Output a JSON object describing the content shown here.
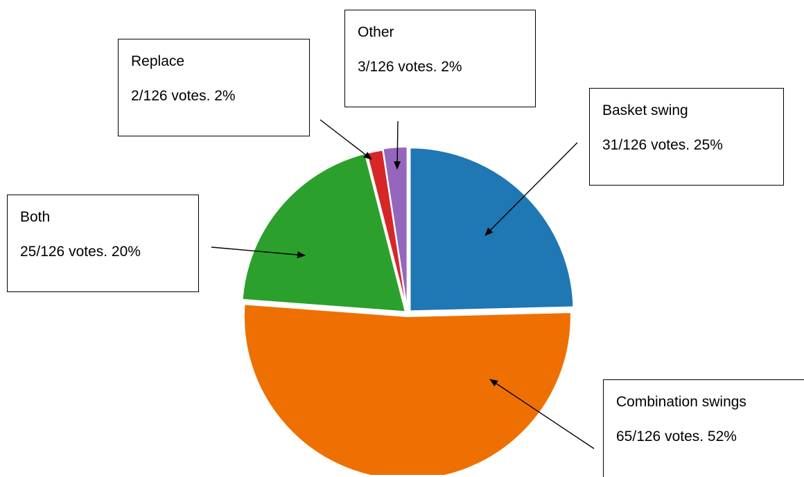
{
  "chart_data": {
    "type": "pie",
    "total_votes": 126,
    "slices": [
      {
        "label": "Basket swing",
        "votes": 31,
        "text": "31/126 votes. 25%",
        "color": "#1f77b4"
      },
      {
        "label": "Combination swings",
        "votes": 65,
        "text": "65/126 votes. 52%",
        "color": "#ee7003"
      },
      {
        "label": "Both",
        "votes": 25,
        "text": "25/126 votes. 20%",
        "color": "#2ca02c"
      },
      {
        "label": "Replace",
        "votes": 2,
        "text": "2/126 votes. 2%",
        "color": "#d62728"
      },
      {
        "label": "Other",
        "votes": 3,
        "text": "3/126 votes. 2%",
        "color": "#9467bd"
      }
    ]
  }
}
